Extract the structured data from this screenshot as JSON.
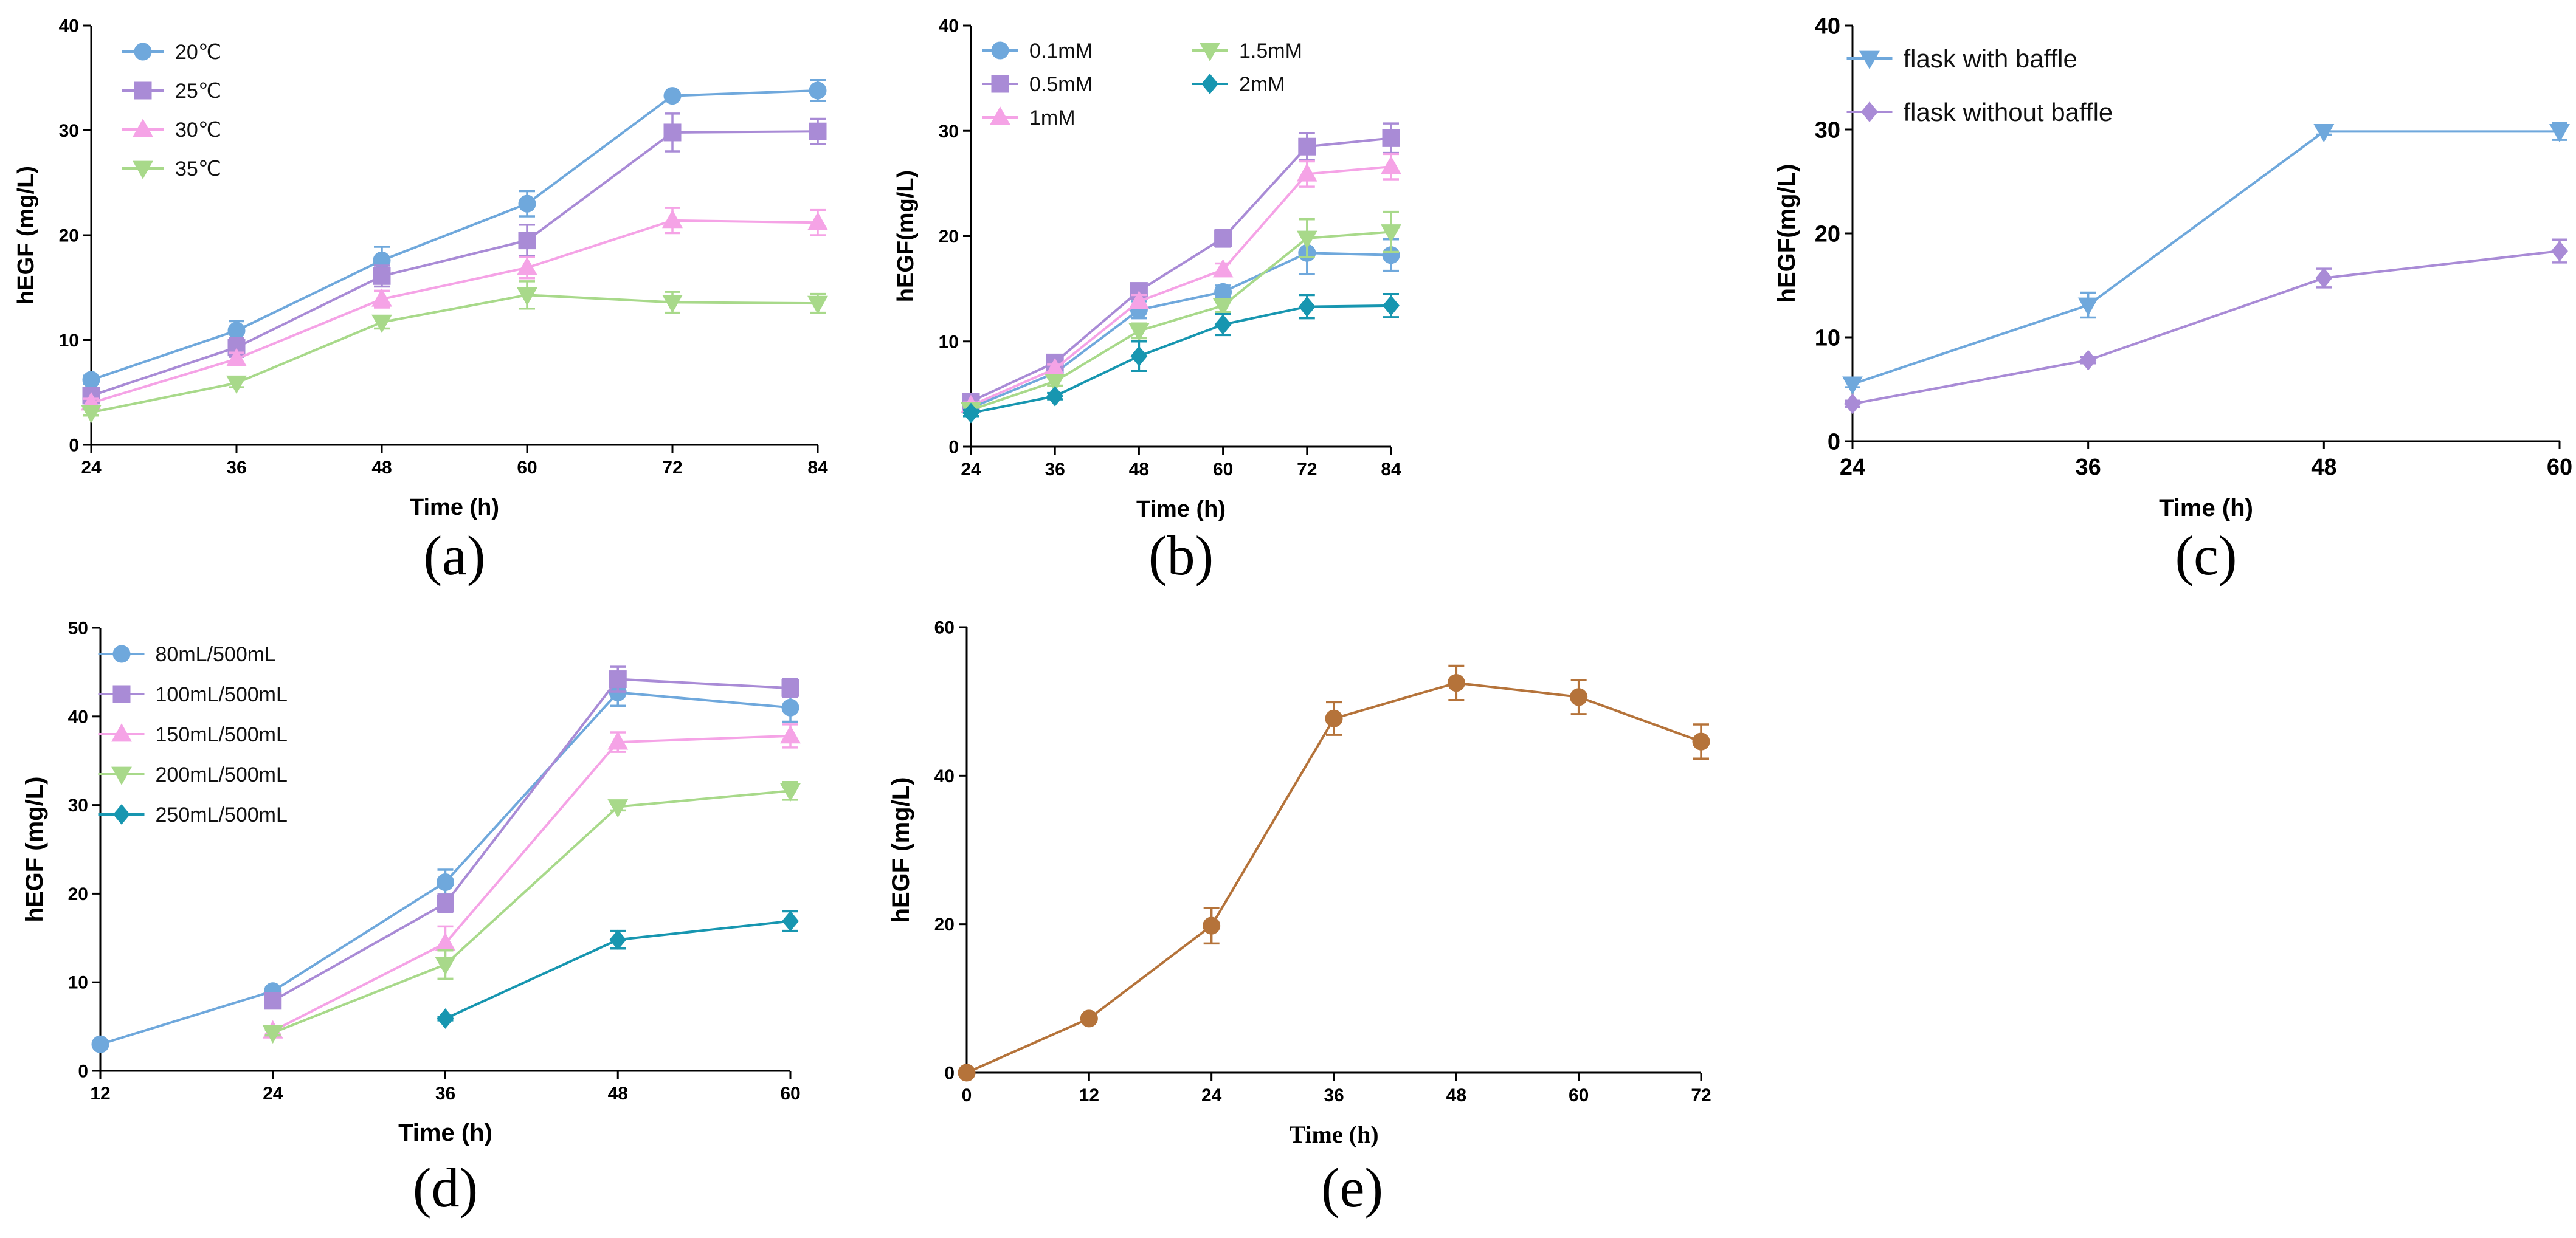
{
  "chart_data": [
    {
      "panel": "(a)",
      "type": "line",
      "xlabel": "Time (h)",
      "ylabel": "hEGF (mg/L)",
      "xlim": [
        24,
        84
      ],
      "ylim": [
        0,
        40
      ],
      "xticks": [
        24,
        36,
        48,
        60,
        72,
        84
      ],
      "yticks": [
        0,
        10,
        20,
        30,
        40
      ],
      "legend": "top-left",
      "series": [
        {
          "name": "20℃",
          "color": "#6fa8dc",
          "marker": "circle",
          "x": [
            24,
            36,
            48,
            60,
            72,
            84
          ],
          "y": [
            6.2,
            10.9,
            17.6,
            23.0,
            33.3,
            33.8
          ],
          "err": [
            0.4,
            0.9,
            1.3,
            1.2,
            0.4,
            1.0
          ]
        },
        {
          "name": "25℃",
          "color": "#a98bd6",
          "marker": "square",
          "x": [
            24,
            36,
            48,
            60,
            72,
            84
          ],
          "y": [
            4.7,
            9.3,
            16.1,
            19.5,
            29.8,
            29.9
          ],
          "err": [
            0.4,
            0.9,
            1.0,
            1.5,
            1.8,
            1.2
          ]
        },
        {
          "name": "30℃",
          "color": "#f5a3e6",
          "marker": "triangle-up",
          "x": [
            24,
            36,
            48,
            60,
            72,
            84
          ],
          "y": [
            4.0,
            8.2,
            13.9,
            16.9,
            21.4,
            21.2
          ],
          "err": [
            0.4,
            0.6,
            0.8,
            1.0,
            1.2,
            1.2
          ]
        },
        {
          "name": "35℃",
          "color": "#a8d98a",
          "marker": "triangle-down",
          "x": [
            24,
            36,
            48,
            60,
            72,
            84
          ],
          "y": [
            3.1,
            5.9,
            11.7,
            14.3,
            13.6,
            13.5
          ],
          "err": [
            0.3,
            0.4,
            0.6,
            1.3,
            1.0,
            0.9
          ]
        }
      ]
    },
    {
      "panel": "(b)",
      "type": "line",
      "xlabel": "Time (h)",
      "ylabel": "hEGF(mg/L)",
      "xlim": [
        24,
        84
      ],
      "ylim": [
        0,
        40
      ],
      "xticks": [
        24,
        36,
        48,
        60,
        72,
        84
      ],
      "yticks": [
        0,
        10,
        20,
        30,
        40
      ],
      "legend": "top-left",
      "series": [
        {
          "name": "0.1mM",
          "color": "#6fa8dc",
          "marker": "circle",
          "x": [
            24,
            36,
            48,
            60,
            72,
            84
          ],
          "y": [
            3.7,
            7.0,
            13.0,
            14.7,
            18.4,
            18.2
          ],
          "err": [
            0.3,
            0.4,
            0.8,
            0.6,
            2.0,
            1.5
          ]
        },
        {
          "name": "0.5mM",
          "color": "#a98bd6",
          "marker": "square",
          "x": [
            24,
            36,
            48,
            60,
            72,
            84
          ],
          "y": [
            4.3,
            8.0,
            14.8,
            19.8,
            28.5,
            29.3
          ],
          "err": [
            0.3,
            0.5,
            0.6,
            0.8,
            1.3,
            1.4
          ]
        },
        {
          "name": "1mM",
          "color": "#f5a3e6",
          "marker": "triangle-up",
          "x": [
            24,
            36,
            48,
            60,
            72,
            84
          ],
          "y": [
            3.9,
            7.4,
            13.8,
            16.8,
            25.9,
            26.6
          ],
          "err": [
            0.3,
            0.4,
            0.6,
            0.6,
            1.2,
            1.2
          ]
        },
        {
          "name": "1.5mM",
          "color": "#a8d98a",
          "marker": "triangle-down",
          "x": [
            24,
            36,
            48,
            60,
            72,
            84
          ],
          "y": [
            3.5,
            6.2,
            11.0,
            13.4,
            19.8,
            20.4
          ],
          "err": [
            0.3,
            0.4,
            0.7,
            0.6,
            1.8,
            1.9
          ]
        },
        {
          "name": "2mM",
          "color": "#1796b0",
          "marker": "diamond",
          "x": [
            24,
            36,
            48,
            60,
            72,
            84
          ],
          "y": [
            3.2,
            4.8,
            8.6,
            11.6,
            13.3,
            13.4
          ],
          "err": [
            0.3,
            0.3,
            1.4,
            1.0,
            1.1,
            1.1
          ]
        }
      ]
    },
    {
      "panel": "(c)",
      "type": "line",
      "xlabel": "Time (h)",
      "ylabel": "hEGF(mg/L)",
      "xlim": [
        24,
        60
      ],
      "ylim": [
        0,
        40
      ],
      "xticks": [
        24,
        36,
        48,
        60
      ],
      "yticks": [
        0,
        10,
        20,
        30,
        40
      ],
      "legend": "top-left",
      "series": [
        {
          "name": "flask with baffle",
          "color": "#6fa8dc",
          "marker": "triangle-down",
          "x": [
            24,
            36,
            48,
            60
          ],
          "y": [
            5.5,
            13.1,
            29.8,
            29.8
          ],
          "err": [
            0.3,
            1.2,
            0.3,
            0.8
          ]
        },
        {
          "name": "flask without baffle",
          "color": "#a98bd6",
          "marker": "diamond",
          "x": [
            24,
            36,
            48,
            60
          ],
          "y": [
            3.6,
            7.8,
            15.7,
            18.3
          ],
          "err": [
            0.3,
            0.3,
            0.9,
            1.1
          ]
        }
      ]
    },
    {
      "panel": "(d)",
      "type": "line",
      "xlabel": "Time (h)",
      "ylabel": "hEGF (mg/L)",
      "xlim": [
        12,
        60
      ],
      "ylim": [
        0,
        50
      ],
      "xticks": [
        12,
        24,
        36,
        48,
        60
      ],
      "yticks": [
        0,
        10,
        20,
        30,
        40,
        50
      ],
      "legend": "top-left",
      "series": [
        {
          "name": "80mL/500mL",
          "color": "#6fa8dc",
          "marker": "circle",
          "x": [
            12,
            24,
            36,
            48,
            60
          ],
          "y": [
            3.0,
            9.0,
            21.3,
            42.7,
            41.0
          ],
          "err": [
            0.3,
            0.4,
            1.4,
            1.5,
            1.6
          ]
        },
        {
          "name": "100mL/500mL",
          "color": "#a98bd6",
          "marker": "square",
          "x": [
            24,
            36,
            48,
            60
          ],
          "y": [
            7.9,
            18.9,
            44.2,
            43.2
          ],
          "err": [
            0.4,
            1.0,
            1.4,
            1.0
          ]
        },
        {
          "name": "150mL/500mL",
          "color": "#f5a3e6",
          "marker": "triangle-up",
          "x": [
            24,
            36,
            48,
            60
          ],
          "y": [
            4.5,
            14.4,
            37.1,
            37.8
          ],
          "err": [
            0.3,
            1.9,
            1.1,
            1.3
          ]
        },
        {
          "name": "200mL/500mL",
          "color": "#a8d98a",
          "marker": "triangle-down",
          "x": [
            24,
            36,
            48,
            60
          ],
          "y": [
            4.3,
            12.0,
            29.8,
            31.6
          ],
          "err": [
            0.3,
            1.6,
            0.4,
            1.0
          ]
        },
        {
          "name": "250mL/500mL",
          "color": "#1796b0",
          "marker": "diamond",
          "x": [
            36,
            48,
            60
          ],
          "y": [
            5.9,
            14.8,
            16.9
          ],
          "err": [
            0.2,
            1.0,
            1.1
          ]
        }
      ]
    },
    {
      "panel": "(e)",
      "type": "line",
      "xlabel": "Time (h)",
      "ylabel": "hEGF (mg/L)",
      "xlim": [
        0,
        72
      ],
      "ylim": [
        0,
        60
      ],
      "xticks": [
        0,
        12,
        24,
        36,
        48,
        60,
        72
      ],
      "yticks": [
        0,
        20,
        40,
        60
      ],
      "legend": "none",
      "series": [
        {
          "name": "hEGF",
          "color": "#b5733a",
          "marker": "circle",
          "x": [
            0,
            12,
            24,
            36,
            48,
            60,
            72
          ],
          "y": [
            0.0,
            7.3,
            19.8,
            47.7,
            52.5,
            50.6,
            44.6
          ],
          "err": [
            0.2,
            0.5,
            2.4,
            2.2,
            2.3,
            2.3,
            2.3
          ]
        }
      ]
    }
  ]
}
